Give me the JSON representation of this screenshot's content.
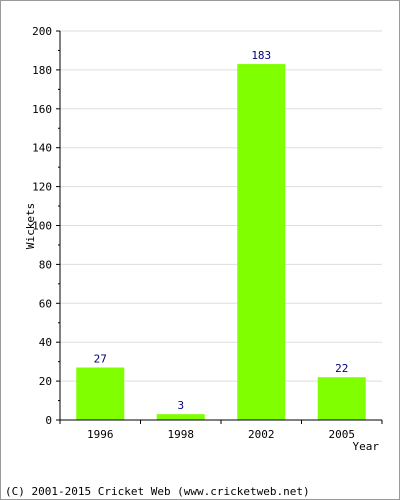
{
  "chart_data": {
    "type": "bar",
    "categories": [
      "1996",
      "1998",
      "2002",
      "2005"
    ],
    "values": [
      27,
      3,
      183,
      22
    ],
    "xlabel": "Year",
    "ylabel": "Wickets",
    "ylim": [
      0,
      200
    ],
    "yticks": [
      0,
      20,
      40,
      60,
      80,
      100,
      120,
      140,
      160,
      180,
      200
    ],
    "grid": true,
    "bar_color": "#80ff00",
    "value_label_color": "#000080"
  },
  "footer": "(C) 2001-2015 Cricket Web (www.cricketweb.net)"
}
